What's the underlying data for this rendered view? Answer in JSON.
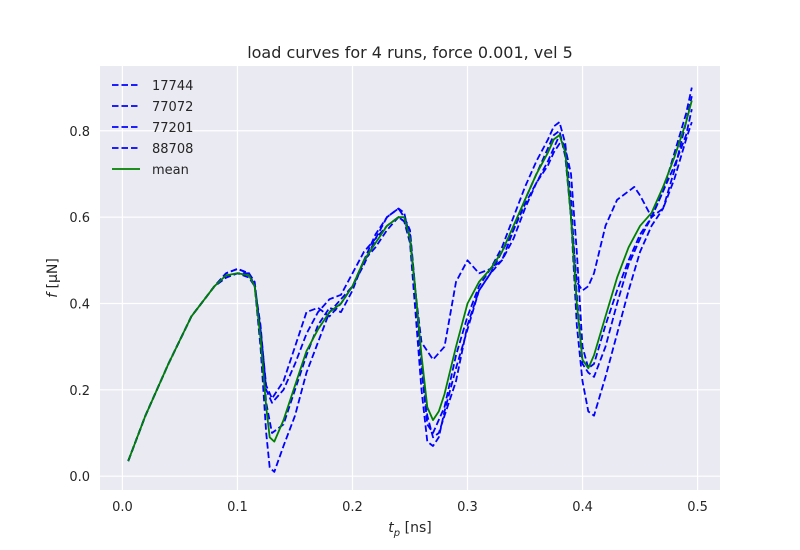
{
  "chart_data": {
    "type": "line",
    "title": "load curves for 4 runs, force 0.001, vel 5",
    "xlabel": {
      "main": "t",
      "sub": "p",
      "unit": " [ns]"
    },
    "ylabel": {
      "main": "f",
      "unit": " [μN]"
    },
    "xlim": [
      -0.0195,
      0.5195
    ],
    "ylim": [
      -0.032,
      0.95
    ],
    "xticks": [
      0.0,
      0.1,
      0.2,
      0.3,
      0.4,
      0.5
    ],
    "xtick_labels": [
      "0.0",
      "0.1",
      "0.2",
      "0.3",
      "0.4",
      "0.5"
    ],
    "yticks": [
      0.0,
      0.2,
      0.4,
      0.6,
      0.8
    ],
    "ytick_labels": [
      "0.0",
      "0.2",
      "0.4",
      "0.6",
      "0.8"
    ],
    "grid": true,
    "legend_position": "top-left",
    "colors": {
      "runs": "#0000ff",
      "mean": "#008000",
      "background": "#eaeaf2",
      "grid": "#ffffff"
    },
    "series": [
      {
        "name": "17744",
        "style": "dashed",
        "color": "#0000ff",
        "x": [
          0.005,
          0.02,
          0.04,
          0.06,
          0.08,
          0.09,
          0.1,
          0.11,
          0.115,
          0.12,
          0.125,
          0.13,
          0.14,
          0.15,
          0.16,
          0.17,
          0.18,
          0.19,
          0.2,
          0.21,
          0.22,
          0.23,
          0.24,
          0.245,
          0.25,
          0.255,
          0.26,
          0.265,
          0.27,
          0.275,
          0.28,
          0.29,
          0.3,
          0.31,
          0.32,
          0.33,
          0.34,
          0.35,
          0.36,
          0.37,
          0.375,
          0.38,
          0.385,
          0.39,
          0.395,
          0.4,
          0.405,
          0.41,
          0.42,
          0.43,
          0.44,
          0.45,
          0.46,
          0.47,
          0.48,
          0.49,
          0.495
        ],
        "y": [
          0.035,
          0.14,
          0.26,
          0.37,
          0.44,
          0.46,
          0.47,
          0.47,
          0.44,
          0.35,
          0.2,
          0.17,
          0.2,
          0.26,
          0.33,
          0.38,
          0.41,
          0.42,
          0.47,
          0.52,
          0.55,
          0.58,
          0.6,
          0.59,
          0.56,
          0.42,
          0.27,
          0.14,
          0.09,
          0.1,
          0.14,
          0.22,
          0.35,
          0.43,
          0.47,
          0.52,
          0.57,
          0.63,
          0.68,
          0.72,
          0.75,
          0.77,
          0.76,
          0.7,
          0.52,
          0.3,
          0.25,
          0.26,
          0.35,
          0.43,
          0.5,
          0.56,
          0.6,
          0.66,
          0.72,
          0.79,
          0.85
        ]
      },
      {
        "name": "77072",
        "style": "dashed",
        "color": "#0000ff",
        "x": [
          0.005,
          0.02,
          0.04,
          0.06,
          0.08,
          0.09,
          0.1,
          0.11,
          0.115,
          0.12,
          0.125,
          0.128,
          0.132,
          0.14,
          0.15,
          0.16,
          0.17,
          0.18,
          0.19,
          0.2,
          0.21,
          0.22,
          0.23,
          0.24,
          0.245,
          0.25,
          0.255,
          0.26,
          0.265,
          0.27,
          0.275,
          0.28,
          0.29,
          0.3,
          0.31,
          0.32,
          0.33,
          0.34,
          0.35,
          0.36,
          0.37,
          0.375,
          0.38,
          0.385,
          0.39,
          0.395,
          0.4,
          0.405,
          0.41,
          0.42,
          0.43,
          0.44,
          0.45,
          0.46,
          0.47,
          0.48,
          0.49,
          0.495
        ],
        "y": [
          0.035,
          0.14,
          0.26,
          0.37,
          0.44,
          0.47,
          0.48,
          0.47,
          0.44,
          0.3,
          0.1,
          0.02,
          0.01,
          0.07,
          0.14,
          0.24,
          0.31,
          0.38,
          0.41,
          0.44,
          0.5,
          0.53,
          0.57,
          0.6,
          0.59,
          0.54,
          0.37,
          0.2,
          0.08,
          0.07,
          0.09,
          0.15,
          0.25,
          0.34,
          0.43,
          0.47,
          0.5,
          0.55,
          0.62,
          0.68,
          0.73,
          0.76,
          0.79,
          0.76,
          0.6,
          0.35,
          0.22,
          0.15,
          0.14,
          0.23,
          0.33,
          0.43,
          0.52,
          0.58,
          0.62,
          0.71,
          0.82,
          0.88
        ]
      },
      {
        "name": "77201",
        "style": "dashed",
        "color": "#0000ff",
        "x": [
          0.005,
          0.02,
          0.04,
          0.06,
          0.08,
          0.09,
          0.1,
          0.11,
          0.115,
          0.12,
          0.125,
          0.13,
          0.14,
          0.15,
          0.16,
          0.17,
          0.18,
          0.19,
          0.2,
          0.21,
          0.22,
          0.23,
          0.24,
          0.245,
          0.25,
          0.255,
          0.26,
          0.265,
          0.27,
          0.28,
          0.29,
          0.3,
          0.31,
          0.32,
          0.33,
          0.34,
          0.35,
          0.36,
          0.37,
          0.375,
          0.38,
          0.385,
          0.39,
          0.395,
          0.4,
          0.405,
          0.41,
          0.42,
          0.43,
          0.44,
          0.445,
          0.45,
          0.46,
          0.47,
          0.48,
          0.49,
          0.495
        ],
        "y": [
          0.035,
          0.14,
          0.26,
          0.37,
          0.44,
          0.46,
          0.47,
          0.46,
          0.44,
          0.34,
          0.21,
          0.18,
          0.22,
          0.3,
          0.38,
          0.39,
          0.37,
          0.4,
          0.44,
          0.49,
          0.55,
          0.6,
          0.62,
          0.61,
          0.55,
          0.42,
          0.31,
          0.29,
          0.27,
          0.3,
          0.45,
          0.5,
          0.47,
          0.48,
          0.5,
          0.57,
          0.64,
          0.7,
          0.76,
          0.79,
          0.8,
          0.74,
          0.6,
          0.45,
          0.43,
          0.44,
          0.47,
          0.58,
          0.64,
          0.66,
          0.67,
          0.65,
          0.6,
          0.62,
          0.69,
          0.78,
          0.82
        ]
      },
      {
        "name": "88708",
        "style": "dashed",
        "color": "#0000ff",
        "x": [
          0.005,
          0.02,
          0.04,
          0.06,
          0.08,
          0.09,
          0.1,
          0.11,
          0.115,
          0.12,
          0.125,
          0.13,
          0.14,
          0.15,
          0.16,
          0.17,
          0.18,
          0.19,
          0.2,
          0.21,
          0.22,
          0.23,
          0.24,
          0.245,
          0.25,
          0.255,
          0.26,
          0.265,
          0.27,
          0.28,
          0.29,
          0.3,
          0.31,
          0.32,
          0.33,
          0.34,
          0.35,
          0.36,
          0.37,
          0.375,
          0.38,
          0.385,
          0.39,
          0.395,
          0.4,
          0.405,
          0.41,
          0.42,
          0.43,
          0.44,
          0.45,
          0.46,
          0.47,
          0.48,
          0.49,
          0.495
        ],
        "y": [
          0.035,
          0.14,
          0.26,
          0.37,
          0.44,
          0.47,
          0.48,
          0.47,
          0.45,
          0.33,
          0.17,
          0.1,
          0.12,
          0.2,
          0.28,
          0.35,
          0.39,
          0.38,
          0.43,
          0.5,
          0.56,
          0.6,
          0.62,
          0.6,
          0.57,
          0.42,
          0.25,
          0.12,
          0.1,
          0.16,
          0.28,
          0.37,
          0.44,
          0.48,
          0.53,
          0.6,
          0.67,
          0.73,
          0.78,
          0.81,
          0.82,
          0.77,
          0.64,
          0.42,
          0.26,
          0.24,
          0.23,
          0.3,
          0.4,
          0.49,
          0.55,
          0.6,
          0.66,
          0.75,
          0.84,
          0.9
        ]
      },
      {
        "name": "mean",
        "style": "solid",
        "color": "#008000",
        "x": [
          0.005,
          0.02,
          0.04,
          0.06,
          0.08,
          0.09,
          0.1,
          0.11,
          0.115,
          0.12,
          0.125,
          0.128,
          0.132,
          0.14,
          0.15,
          0.16,
          0.17,
          0.18,
          0.19,
          0.2,
          0.21,
          0.22,
          0.23,
          0.24,
          0.245,
          0.25,
          0.255,
          0.26,
          0.265,
          0.27,
          0.275,
          0.28,
          0.29,
          0.3,
          0.31,
          0.32,
          0.33,
          0.34,
          0.35,
          0.36,
          0.37,
          0.375,
          0.38,
          0.385,
          0.39,
          0.395,
          0.4,
          0.405,
          0.41,
          0.42,
          0.43,
          0.44,
          0.45,
          0.46,
          0.47,
          0.48,
          0.49,
          0.495
        ],
        "y": [
          0.035,
          0.14,
          0.26,
          0.37,
          0.44,
          0.465,
          0.47,
          0.465,
          0.44,
          0.32,
          0.16,
          0.09,
          0.08,
          0.13,
          0.21,
          0.29,
          0.34,
          0.38,
          0.4,
          0.44,
          0.5,
          0.54,
          0.58,
          0.6,
          0.6,
          0.55,
          0.42,
          0.28,
          0.16,
          0.13,
          0.15,
          0.19,
          0.3,
          0.4,
          0.45,
          0.48,
          0.52,
          0.58,
          0.64,
          0.7,
          0.75,
          0.78,
          0.79,
          0.75,
          0.6,
          0.4,
          0.27,
          0.25,
          0.28,
          0.37,
          0.46,
          0.53,
          0.58,
          0.61,
          0.67,
          0.74,
          0.82,
          0.87
        ]
      }
    ]
  }
}
